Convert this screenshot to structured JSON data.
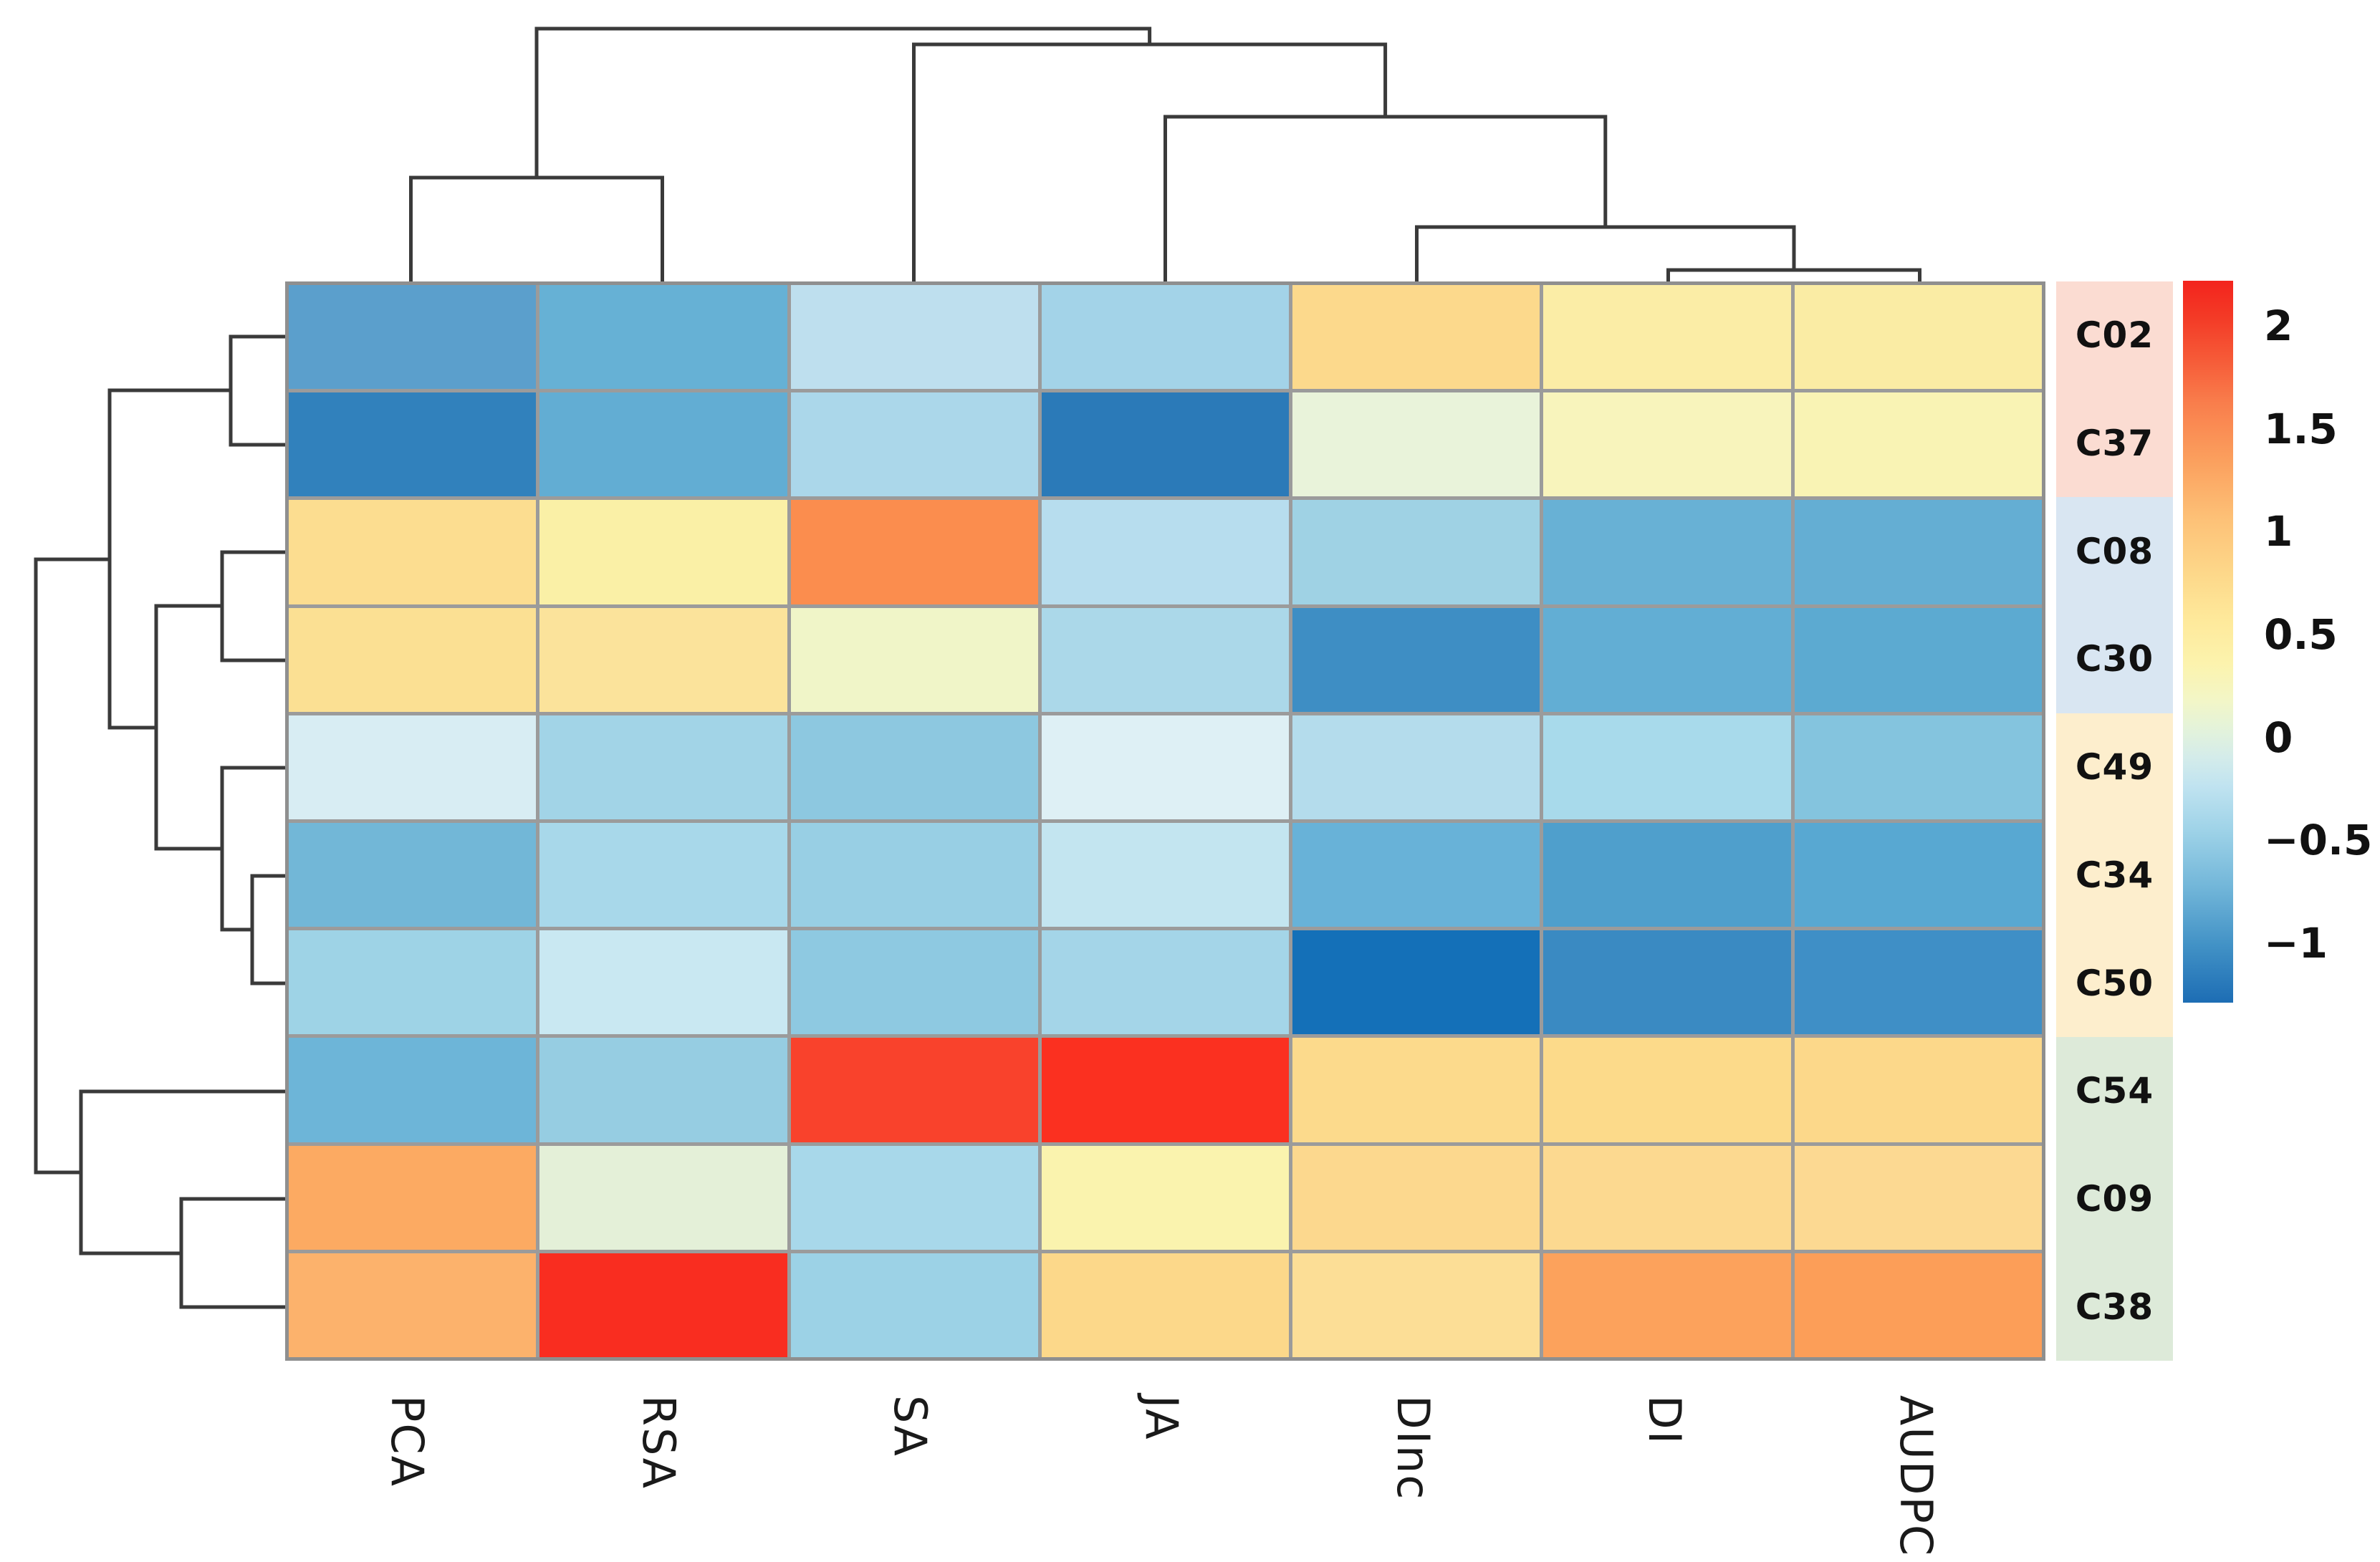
{
  "figure": {
    "background": "#ffffff",
    "description": "Clustered heatmap (clustermap) with column dendrogram on top, row dendrogram on left, row annotation color strip with row labels on right, and vertical colorbar legend"
  },
  "chart_data": {
    "type": "heatmap",
    "title": "",
    "xlabel": "",
    "ylabel": "",
    "columns": [
      "PCA",
      "RSA",
      "SA",
      "JA",
      "DInc",
      "DI",
      "AUDPC"
    ],
    "rows": [
      "C02",
      "C37",
      "C08",
      "C30",
      "C49",
      "C34",
      "C50",
      "C54",
      "C09",
      "C38"
    ],
    "values": [
      [
        -0.85,
        -0.75,
        -0.35,
        -0.55,
        0.75,
        0.5,
        0.5
      ],
      [
        -1.1,
        -0.75,
        -0.5,
        -1.15,
        0.05,
        0.4,
        0.4
      ],
      [
        0.7,
        0.45,
        1.5,
        -0.4,
        -0.55,
        -0.75,
        -0.75
      ],
      [
        0.65,
        0.6,
        0.2,
        -0.5,
        -1.0,
        -0.75,
        -0.8
      ],
      [
        -0.3,
        -0.55,
        -0.65,
        -0.25,
        -0.45,
        -0.5,
        -0.7
      ],
      [
        -0.7,
        -0.5,
        -0.6,
        -0.35,
        -0.75,
        -0.9,
        -0.85
      ],
      [
        -0.55,
        -0.35,
        -0.65,
        -0.55,
        -1.3,
        -1.0,
        -1.0
      ],
      [
        -0.7,
        -0.6,
        2.05,
        2.15,
        0.75,
        0.75,
        0.75
      ],
      [
        1.2,
        0.05,
        -0.5,
        0.4,
        0.75,
        0.75,
        0.75
      ],
      [
        1.1,
        2.2,
        -0.55,
        0.75,
        0.7,
        1.3,
        1.35
      ]
    ],
    "cell_colors": [
      [
        "#5b9fcc",
        "#66b1d5",
        "#bedfee",
        "#a3d3e8",
        "#fcd98c",
        "#fbeda6",
        "#faeca4"
      ],
      [
        "#3181bc",
        "#62add3",
        "#abd7ea",
        "#2b7ab8",
        "#e9f3da",
        "#f8f4bc",
        "#f9f3b4"
      ],
      [
        "#fcdd90",
        "#faf0a6",
        "#fb8d4e",
        "#b7ddee",
        "#9fd2e4",
        "#68b1d5",
        "#64aed3"
      ],
      [
        "#fbe093",
        "#fbe39b",
        "#f0f5c8",
        "#abd8e9",
        "#3e8ec4",
        "#62aed4",
        "#5caad1"
      ],
      [
        "#d8edf3",
        "#a2d4e7",
        "#8dc8e0",
        "#def0f5",
        "#b4dcec",
        "#a8daeb",
        "#84c4de"
      ],
      [
        "#72b7d7",
        "#a8d8ea",
        "#98cfe4",
        "#c3e5f0",
        "#68b2d8",
        "#4f9fcc",
        "#58a8d2"
      ],
      [
        "#9ed3e6",
        "#c9e8f2",
        "#8ec9e1",
        "#a4d5e8",
        "#1470b8",
        "#3a8ac2",
        "#3f8fc6"
      ],
      [
        "#6db5d8",
        "#96cde2",
        "#f9422c",
        "#fb3020",
        "#fcda8c",
        "#fcda8a",
        "#fcd88a"
      ],
      [
        "#fcaa62",
        "#e4f0d8",
        "#a8d8ea",
        "#faf3ae",
        "#fcd88e",
        "#fcd990",
        "#fcd992"
      ],
      [
        "#fcb26c",
        "#f92d20",
        "#9cd2e6",
        "#fcd88a",
        "#fcde96",
        "#fca25c",
        "#fc9e58"
      ]
    ],
    "row_groups": [
      {
        "rows": [
          "C02",
          "C37"
        ],
        "color": "#fbdcd2"
      },
      {
        "rows": [
          "C08",
          "C30"
        ],
        "color": "#d9e6f2"
      },
      {
        "rows": [
          "C49",
          "C34",
          "C50"
        ],
        "color": "#fdeecd"
      },
      {
        "rows": [
          "C54",
          "C09",
          "C38"
        ],
        "color": "#ddead9"
      }
    ],
    "colorbar": {
      "tick_labels": [
        "2",
        "1.5",
        "1",
        "0.5",
        "0",
        "−0.5",
        "−1"
      ],
      "tick_values": [
        2,
        1.5,
        1,
        0.5,
        0,
        -0.5,
        -1
      ],
      "value_range_top_to_bottom": [
        2.22,
        -1.29
      ],
      "gradient_top_to_bottom": [
        {
          "pos": 0,
          "color": "#f3241d"
        },
        {
          "pos": 5,
          "color": "#f33a26"
        },
        {
          "pos": 11,
          "color": "#f65b38"
        },
        {
          "pos": 17,
          "color": "#f97e4c"
        },
        {
          "pos": 25,
          "color": "#fba05e"
        },
        {
          "pos": 33,
          "color": "#fdc177"
        },
        {
          "pos": 41,
          "color": "#fdd98b"
        },
        {
          "pos": 47,
          "color": "#fee99b"
        },
        {
          "pos": 53,
          "color": "#fcf3ad"
        },
        {
          "pos": 58,
          "color": "#f3f6c6"
        },
        {
          "pos": 62,
          "color": "#e4f3da"
        },
        {
          "pos": 66,
          "color": "#d4ecea"
        },
        {
          "pos": 70,
          "color": "#c0e3f0"
        },
        {
          "pos": 76,
          "color": "#9fd3e8"
        },
        {
          "pos": 84,
          "color": "#72b6d9"
        },
        {
          "pos": 92,
          "color": "#4292c6"
        },
        {
          "pos": 100,
          "color": "#1d6db4"
        }
      ]
    },
    "column_dendrogram_newick": "((PCA,RSA),(SA,(JA,(DInc,(DI,AUDPC)))))",
    "row_dendrogram_newick": "(((C02,C37),((C08,C30),(C49,(C34,C50)))),(C54,(C09,C38)))",
    "dendrograms": {
      "top": {
        "links": [
          [
            [
              573.5,
              395
            ],
            [
              573.5,
              248
            ],
            [
              924.5,
              248
            ],
            [
              924.5,
              395
            ]
          ],
          [
            [
              749,
              248
            ],
            [
              749,
              40
            ],
            [
              1604.6,
              40
            ],
            [
              1604.6,
              62
            ]
          ],
          [
            [
              1275.5,
              395
            ],
            [
              1275.5,
              62
            ],
            [
              1933.6,
              62
            ],
            [
              1933.6,
              163
            ]
          ],
          [
            [
              1626.5,
              395
            ],
            [
              1626.5,
              163
            ],
            [
              2240.8,
              163
            ],
            [
              2240.8,
              317
            ]
          ],
          [
            [
              1977.5,
              395
            ],
            [
              1977.5,
              317
            ],
            [
              2504,
              317
            ],
            [
              2504,
              377
            ]
          ],
          [
            [
              2328.5,
              395
            ],
            [
              2328.5,
              377
            ],
            [
              2679.5,
              377
            ],
            [
              2679.5,
              395
            ]
          ]
        ]
      },
      "left": {
        "links": [
          [
            [
              398,
              470
            ],
            [
              322,
              470
            ],
            [
              322,
              621
            ],
            [
              398,
              621
            ]
          ],
          [
            [
              398,
              771
            ],
            [
              310,
              771
            ],
            [
              310,
              922
            ],
            [
              398,
              922
            ]
          ],
          [
            [
              398,
              1223
            ],
            [
              352,
              1223
            ],
            [
              352,
              1373
            ],
            [
              398,
              1373
            ]
          ],
          [
            [
              398,
              1072
            ],
            [
              310,
              1072
            ],
            [
              310,
              1298
            ],
            [
              352,
              1298
            ]
          ],
          [
            [
              310,
              846
            ],
            [
              218,
              846
            ],
            [
              218,
              1185
            ],
            [
              310,
              1185
            ]
          ],
          [
            [
              322,
              545
            ],
            [
              153,
              545
            ],
            [
              153,
              1016
            ],
            [
              218,
              1016
            ]
          ],
          [
            [
              398,
              1674
            ],
            [
              253,
              1674
            ],
            [
              253,
              1825
            ],
            [
              398,
              1825
            ]
          ],
          [
            [
              398,
              1524
            ],
            [
              113,
              1524
            ],
            [
              113,
              1750
            ],
            [
              253,
              1750
            ]
          ],
          [
            [
              153,
              781
            ],
            [
              50,
              781
            ],
            [
              50,
              1637
            ],
            [
              113,
              1637
            ]
          ]
        ]
      }
    }
  }
}
